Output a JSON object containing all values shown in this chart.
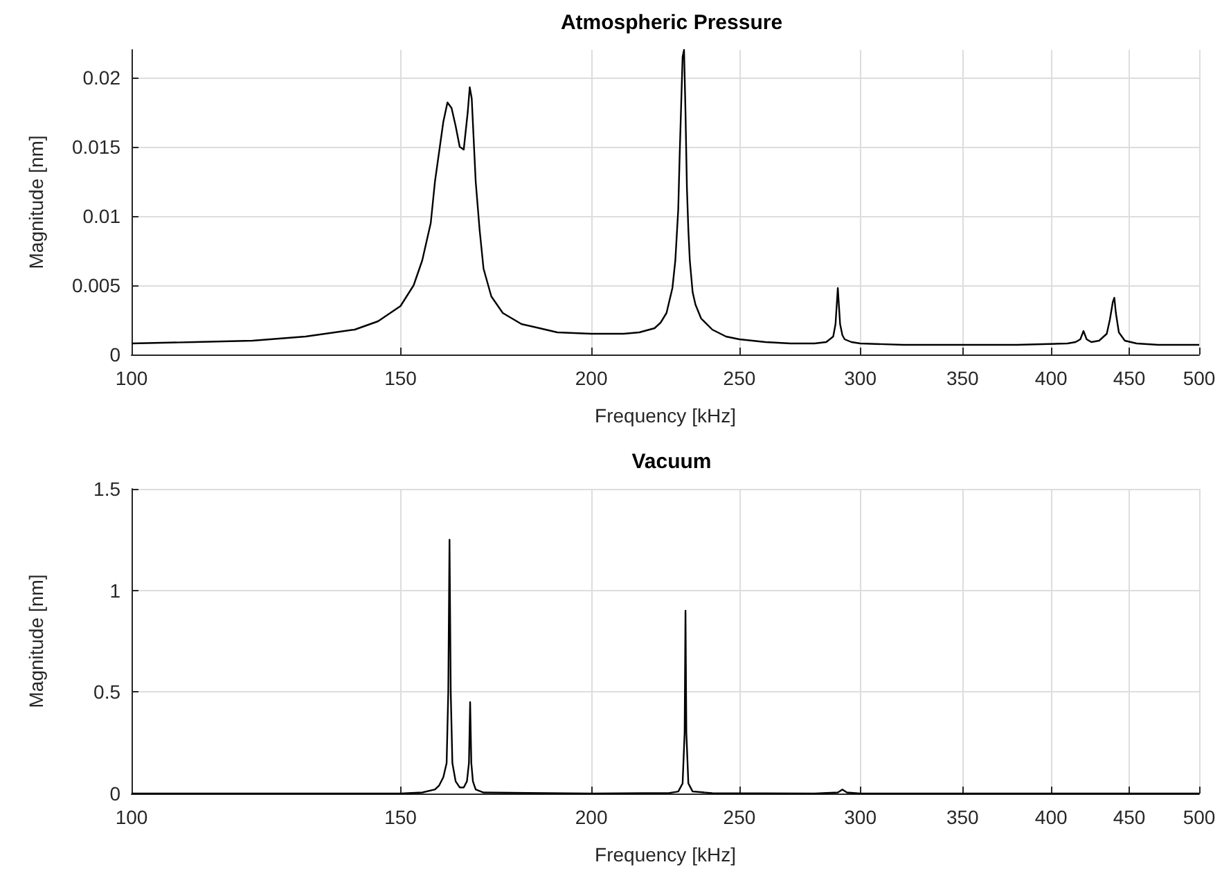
{
  "chart_data": [
    {
      "type": "line",
      "title": "Atmospheric Pressure",
      "xlabel": "Frequency [kHz]",
      "ylabel": "Magnitude [nm]",
      "log": "x",
      "grid": true,
      "marker": "none",
      "line_style": "solid",
      "xlim": [
        100,
        500
      ],
      "xticks": [
        100,
        150,
        200,
        250,
        300,
        350,
        400,
        450,
        500
      ],
      "ylim": [
        0,
        0.022
      ],
      "yticks": [
        0,
        0.005,
        0.01,
        0.015,
        0.02
      ],
      "x": [
        100,
        110,
        120,
        130,
        140,
        145,
        150,
        153,
        155,
        157,
        158,
        160,
        161,
        162,
        163,
        164,
        165,
        166,
        166.5,
        167,
        168,
        169,
        170,
        172,
        175,
        180,
        185,
        190,
        200,
        210,
        215,
        220,
        222,
        224,
        226,
        227,
        228,
        228.5,
        229,
        229.5,
        230,
        230.5,
        231,
        231.5,
        232,
        233,
        234,
        236,
        240,
        245,
        250,
        260,
        270,
        280,
        285,
        288,
        289,
        290,
        291,
        292,
        293,
        296,
        300,
        320,
        350,
        380,
        410,
        415,
        418,
        420,
        422,
        425,
        430,
        435,
        437,
        439,
        440,
        441,
        443,
        447,
        455,
        470,
        500
      ],
      "series": [
        {
          "color": "#000000",
          "values": [
            0.0008,
            0.0009,
            0.001,
            0.0013,
            0.0018,
            0.0024,
            0.0035,
            0.005,
            0.0068,
            0.0095,
            0.0125,
            0.0168,
            0.0182,
            0.0178,
            0.0165,
            0.015,
            0.0148,
            0.0175,
            0.0193,
            0.0185,
            0.0125,
            0.009,
            0.0062,
            0.0042,
            0.003,
            0.0022,
            0.0019,
            0.0016,
            0.0015,
            0.0015,
            0.0016,
            0.0019,
            0.0023,
            0.003,
            0.0048,
            0.0068,
            0.0105,
            0.0145,
            0.018,
            0.0215,
            0.022,
            0.0175,
            0.012,
            0.009,
            0.0068,
            0.0045,
            0.0036,
            0.0026,
            0.0018,
            0.0013,
            0.0011,
            0.0009,
            0.0008,
            0.0008,
            0.0009,
            0.0013,
            0.0022,
            0.0048,
            0.0022,
            0.0014,
            0.0011,
            0.0009,
            0.0008,
            0.0007,
            0.0007,
            0.0007,
            0.0008,
            0.0009,
            0.0011,
            0.0017,
            0.0011,
            0.0009,
            0.001,
            0.0015,
            0.0025,
            0.0038,
            0.0041,
            0.003,
            0.0016,
            0.001,
            0.0008,
            0.0007,
            0.0007
          ]
        }
      ]
    },
    {
      "type": "line",
      "title": "Vacuum",
      "xlabel": "Frequency [kHz]",
      "ylabel": "Magnitude [nm]",
      "log": "x",
      "grid": true,
      "marker": "none",
      "line_style": "solid",
      "xlim": [
        100,
        500
      ],
      "xticks": [
        100,
        150,
        200,
        250,
        300,
        350,
        400,
        450,
        500
      ],
      "ylim": [
        0,
        1.5
      ],
      "yticks": [
        0,
        0.5,
        1,
        1.5
      ],
      "x": [
        100,
        150,
        155,
        158,
        159,
        160,
        160.8,
        161.2,
        161.5,
        161.8,
        162.2,
        163,
        164,
        165,
        165.8,
        166.3,
        166.6,
        166.9,
        167.3,
        168,
        170,
        200,
        225,
        228,
        229.5,
        230.2,
        230.5,
        230.8,
        231.5,
        233,
        240,
        280,
        290,
        292,
        294,
        300,
        500
      ],
      "series": [
        {
          "color": "#000000",
          "values": [
            0,
            0,
            0.005,
            0.02,
            0.04,
            0.08,
            0.15,
            0.5,
            1.25,
            0.5,
            0.15,
            0.06,
            0.03,
            0.03,
            0.06,
            0.15,
            0.45,
            0.15,
            0.06,
            0.02,
            0.005,
            0,
            0.003,
            0.01,
            0.05,
            0.3,
            0.9,
            0.3,
            0.05,
            0.01,
            0.002,
            0,
            0.005,
            0.02,
            0.005,
            0,
            0
          ]
        }
      ]
    }
  ]
}
